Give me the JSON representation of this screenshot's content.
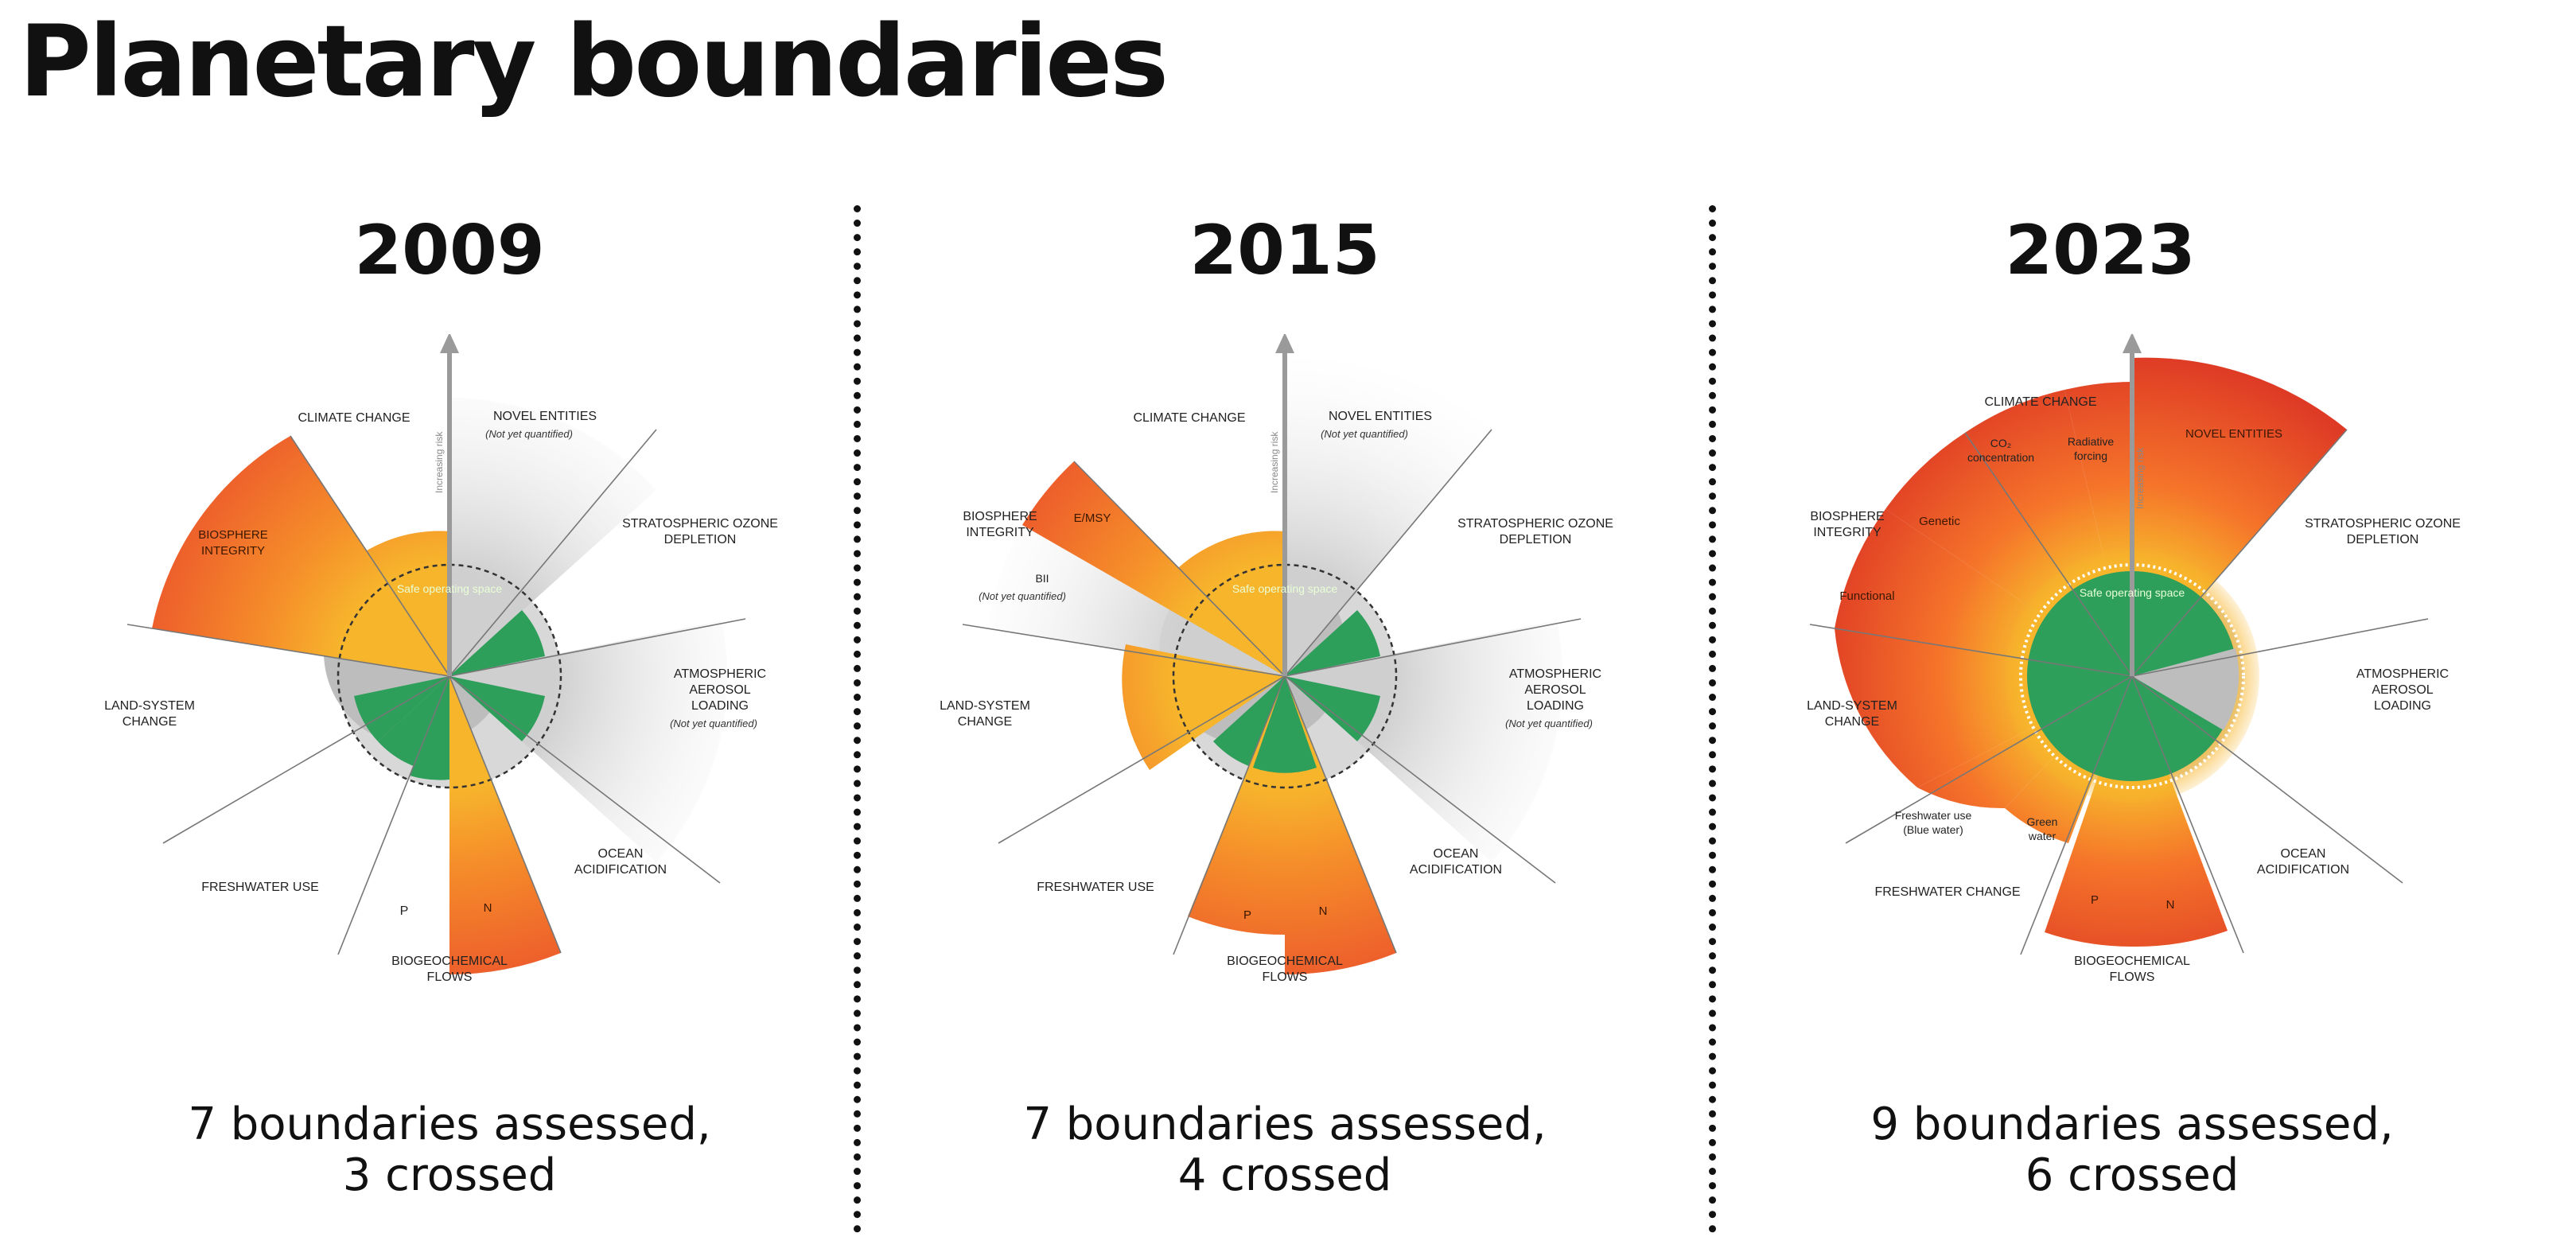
{
  "title": "Planetary boundaries",
  "panels": [
    {
      "year": "2009",
      "caption_line1": "7 boundaries assessed,",
      "caption_line2": "3 crossed",
      "labels": {
        "climate": "CLIMATE CHANGE",
        "novel": "NOVEL ENTITIES",
        "novel_note": "(Not yet quantified)",
        "ozone1": "STRATOSPHERIC OZONE",
        "ozone2": "DEPLETION",
        "aerosol1": "ATMOSPHERIC",
        "aerosol2": "AEROSOL",
        "aerosol3": "LOADING",
        "aerosol_note": "(Not yet quantified)",
        "ocean1": "OCEAN",
        "ocean2": "ACIDIFICATION",
        "bgc1": "BIOGEOCHEMICAL",
        "bgc2": "FLOWS",
        "p": "P",
        "n": "N",
        "freshwater": "FRESHWATER USE",
        "land1": "LAND-SYSTEM",
        "land2": "CHANGE",
        "bio1": "BIOSPHERE",
        "bio2": "INTEGRITY",
        "safe": "Safe operating space",
        "risk": "Increasing risk"
      }
    },
    {
      "year": "2015",
      "caption_line1": "7 boundaries assessed,",
      "caption_line2": "4 crossed",
      "labels": {
        "climate": "CLIMATE CHANGE",
        "novel": "NOVEL ENTITIES",
        "novel_note": "(Not yet quantified)",
        "ozone1": "STRATOSPHERIC OZONE",
        "ozone2": "DEPLETION",
        "aerosol1": "ATMOSPHERIC",
        "aerosol2": "AEROSOL",
        "aerosol3": "LOADING",
        "aerosol_note": "(Not yet quantified)",
        "ocean1": "OCEAN",
        "ocean2": "ACIDIFICATION",
        "bgc1": "BIOGEOCHEMICAL",
        "bgc2": "FLOWS",
        "p": "P",
        "n": "N",
        "freshwater": "FRESHWATER USE",
        "land1": "LAND-SYSTEM",
        "land2": "CHANGE",
        "bio1": "BIOSPHERE",
        "bio2": "INTEGRITY",
        "emsy": "E/MSY",
        "bii": "BII",
        "bii_note": "(Not yet quantified)",
        "safe": "Safe operating space",
        "risk": "Increasing risk"
      }
    },
    {
      "year": "2023",
      "caption_line1": "9 boundaries assessed,",
      "caption_line2": "6 crossed",
      "labels": {
        "climate": "CLIMATE CHANGE",
        "co2_1": "CO₂",
        "co2_2": "concentration",
        "rad1": "Radiative",
        "rad2": "forcing",
        "novel": "NOVEL ENTITIES",
        "ozone1": "STRATOSPHERIC OZONE",
        "ozone2": "DEPLETION",
        "aerosol1": "ATMOSPHERIC",
        "aerosol2": "AEROSOL",
        "aerosol3": "LOADING",
        "ocean1": "OCEAN",
        "ocean2": "ACIDIFICATION",
        "bgc1": "BIOGEOCHEMICAL",
        "bgc2": "FLOWS",
        "p": "P",
        "n": "N",
        "freshwater": "FRESHWATER CHANGE",
        "blue1": "Freshwater use",
        "blue2": "(Blue water)",
        "green1": "Green",
        "green2": "water",
        "land1": "LAND-SYSTEM",
        "land2": "CHANGE",
        "bio1": "BIOSPHERE",
        "bio2": "INTEGRITY",
        "genetic": "Genetic",
        "functional": "Functional",
        "safe": "Safe operating space",
        "risk": "Increasing risk"
      }
    }
  ],
  "colors": {
    "safe_green": "#2e9e5b",
    "uncertainty_orange": "#f59a24",
    "high_risk_red": "#e8452a",
    "not_quantified_grey": "#d6d6d6"
  }
}
